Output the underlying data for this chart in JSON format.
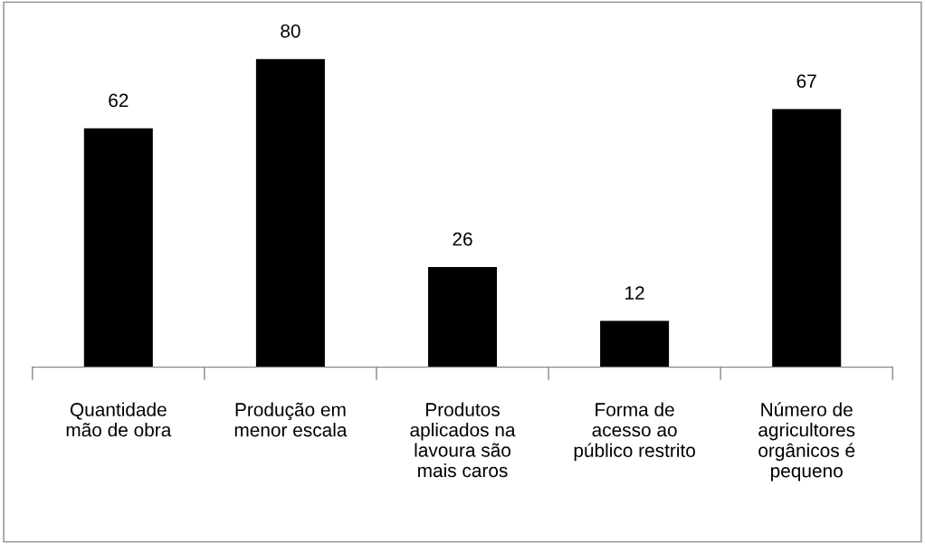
{
  "chart_data": {
    "type": "bar",
    "categories": [
      "Quantidade\nmão de obra",
      "Produção em\nmenor escala",
      "Produtos\naplicados na\nlavoura são\nmais caros",
      "Forma de\nacesso ao\npúblico restrito",
      "Número de\nagricultores\norgânicos é\npequeno"
    ],
    "values": [
      62,
      80,
      26,
      12,
      67
    ],
    "color": "#000000",
    "data_labels": true,
    "grid": false,
    "legend": false
  }
}
